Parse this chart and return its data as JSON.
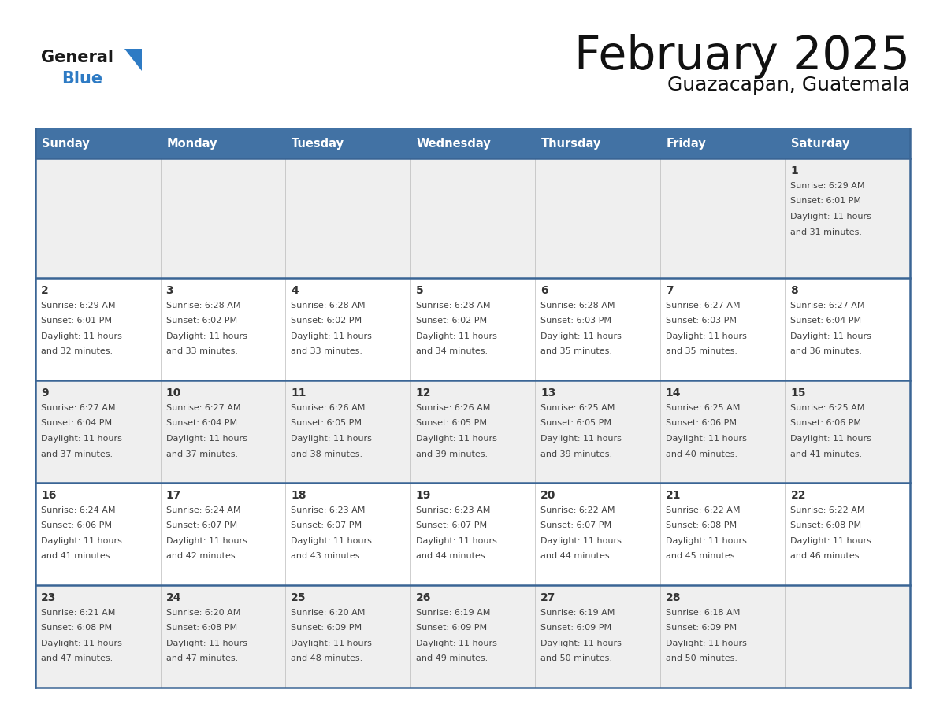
{
  "title": "February 2025",
  "subtitle": "Guazacapan, Guatemala",
  "days_of_week": [
    "Sunday",
    "Monday",
    "Tuesday",
    "Wednesday",
    "Thursday",
    "Friday",
    "Saturday"
  ],
  "header_bg": "#4272a4",
  "header_text": "#ffffff",
  "row_bg_odd": "#efefef",
  "row_bg_even": "#ffffff",
  "day_num_color": "#333333",
  "info_text_color": "#444444",
  "border_color": "#3a6595",
  "title_color": "#111111",
  "subtitle_color": "#111111",
  "logo_general_color": "#1a1a1a",
  "logo_blue_color": "#2e7bc4",
  "cal_data": [
    [
      null,
      null,
      null,
      null,
      null,
      null,
      {
        "day": 1,
        "sunrise": "6:29 AM",
        "sunset": "6:01 PM",
        "daylight_h": "11 hours",
        "daylight_m": "31 minutes"
      }
    ],
    [
      {
        "day": 2,
        "sunrise": "6:29 AM",
        "sunset": "6:01 PM",
        "daylight_h": "11 hours",
        "daylight_m": "32 minutes"
      },
      {
        "day": 3,
        "sunrise": "6:28 AM",
        "sunset": "6:02 PM",
        "daylight_h": "11 hours",
        "daylight_m": "33 minutes"
      },
      {
        "day": 4,
        "sunrise": "6:28 AM",
        "sunset": "6:02 PM",
        "daylight_h": "11 hours",
        "daylight_m": "33 minutes"
      },
      {
        "day": 5,
        "sunrise": "6:28 AM",
        "sunset": "6:02 PM",
        "daylight_h": "11 hours",
        "daylight_m": "34 minutes"
      },
      {
        "day": 6,
        "sunrise": "6:28 AM",
        "sunset": "6:03 PM",
        "daylight_h": "11 hours",
        "daylight_m": "35 minutes"
      },
      {
        "day": 7,
        "sunrise": "6:27 AM",
        "sunset": "6:03 PM",
        "daylight_h": "11 hours",
        "daylight_m": "35 minutes"
      },
      {
        "day": 8,
        "sunrise": "6:27 AM",
        "sunset": "6:04 PM",
        "daylight_h": "11 hours",
        "daylight_m": "36 minutes"
      }
    ],
    [
      {
        "day": 9,
        "sunrise": "6:27 AM",
        "sunset": "6:04 PM",
        "daylight_h": "11 hours",
        "daylight_m": "37 minutes"
      },
      {
        "day": 10,
        "sunrise": "6:27 AM",
        "sunset": "6:04 PM",
        "daylight_h": "11 hours",
        "daylight_m": "37 minutes"
      },
      {
        "day": 11,
        "sunrise": "6:26 AM",
        "sunset": "6:05 PM",
        "daylight_h": "11 hours",
        "daylight_m": "38 minutes"
      },
      {
        "day": 12,
        "sunrise": "6:26 AM",
        "sunset": "6:05 PM",
        "daylight_h": "11 hours",
        "daylight_m": "39 minutes"
      },
      {
        "day": 13,
        "sunrise": "6:25 AM",
        "sunset": "6:05 PM",
        "daylight_h": "11 hours",
        "daylight_m": "39 minutes"
      },
      {
        "day": 14,
        "sunrise": "6:25 AM",
        "sunset": "6:06 PM",
        "daylight_h": "11 hours",
        "daylight_m": "40 minutes"
      },
      {
        "day": 15,
        "sunrise": "6:25 AM",
        "sunset": "6:06 PM",
        "daylight_h": "11 hours",
        "daylight_m": "41 minutes"
      }
    ],
    [
      {
        "day": 16,
        "sunrise": "6:24 AM",
        "sunset": "6:06 PM",
        "daylight_h": "11 hours",
        "daylight_m": "41 minutes"
      },
      {
        "day": 17,
        "sunrise": "6:24 AM",
        "sunset": "6:07 PM",
        "daylight_h": "11 hours",
        "daylight_m": "42 minutes"
      },
      {
        "day": 18,
        "sunrise": "6:23 AM",
        "sunset": "6:07 PM",
        "daylight_h": "11 hours",
        "daylight_m": "43 minutes"
      },
      {
        "day": 19,
        "sunrise": "6:23 AM",
        "sunset": "6:07 PM",
        "daylight_h": "11 hours",
        "daylight_m": "44 minutes"
      },
      {
        "day": 20,
        "sunrise": "6:22 AM",
        "sunset": "6:07 PM",
        "daylight_h": "11 hours",
        "daylight_m": "44 minutes"
      },
      {
        "day": 21,
        "sunrise": "6:22 AM",
        "sunset": "6:08 PM",
        "daylight_h": "11 hours",
        "daylight_m": "45 minutes"
      },
      {
        "day": 22,
        "sunrise": "6:22 AM",
        "sunset": "6:08 PM",
        "daylight_h": "11 hours",
        "daylight_m": "46 minutes"
      }
    ],
    [
      {
        "day": 23,
        "sunrise": "6:21 AM",
        "sunset": "6:08 PM",
        "daylight_h": "11 hours",
        "daylight_m": "47 minutes"
      },
      {
        "day": 24,
        "sunrise": "6:20 AM",
        "sunset": "6:08 PM",
        "daylight_h": "11 hours",
        "daylight_m": "47 minutes"
      },
      {
        "day": 25,
        "sunrise": "6:20 AM",
        "sunset": "6:09 PM",
        "daylight_h": "11 hours",
        "daylight_m": "48 minutes"
      },
      {
        "day": 26,
        "sunrise": "6:19 AM",
        "sunset": "6:09 PM",
        "daylight_h": "11 hours",
        "daylight_m": "49 minutes"
      },
      {
        "day": 27,
        "sunrise": "6:19 AM",
        "sunset": "6:09 PM",
        "daylight_h": "11 hours",
        "daylight_m": "50 minutes"
      },
      {
        "day": 28,
        "sunrise": "6:18 AM",
        "sunset": "6:09 PM",
        "daylight_h": "11 hours",
        "daylight_m": "50 minutes"
      },
      null
    ]
  ]
}
